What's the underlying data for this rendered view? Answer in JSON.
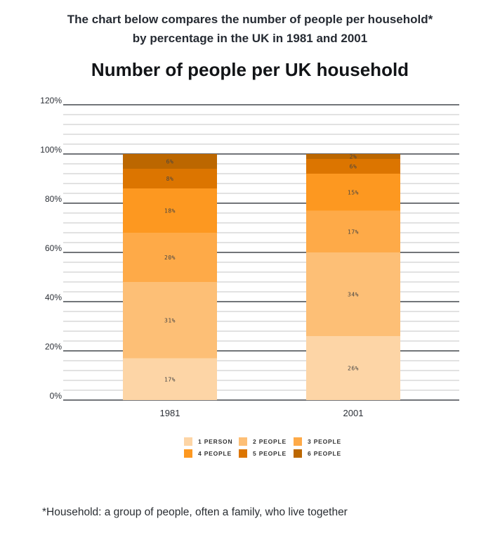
{
  "intro": {
    "line1": "The chart below compares the number of people per household*",
    "line2": "by percentage in the UK in 1981 and 2001"
  },
  "footnote": "*Household: a group of people, often a family, who live together",
  "chart_data": {
    "type": "bar",
    "stacked": true,
    "title": "Number of people per UK household",
    "xlabel": "",
    "ylabel": "",
    "categories": [
      "1981",
      "2001"
    ],
    "ylim": [
      0,
      120
    ],
    "yticks": [
      0,
      20,
      40,
      60,
      80,
      100,
      120
    ],
    "ytick_labels": [
      "0%",
      "20%",
      "40%",
      "60%",
      "80%",
      "100%",
      "120%"
    ],
    "minor_grid_step": 4,
    "grid": true,
    "legend_position": "bottom",
    "series": [
      {
        "name": "1 PERSON",
        "color": "#FDD5A6",
        "values": [
          17,
          26
        ],
        "labels": [
          "17%",
          "26%"
        ]
      },
      {
        "name": "2 PEOPLE",
        "color": "#FDBF76",
        "values": [
          31,
          34
        ],
        "labels": [
          "31%",
          "34%"
        ]
      },
      {
        "name": "3 PEOPLE",
        "color": "#FEAA48",
        "values": [
          20,
          17
        ],
        "labels": [
          "20%",
          "17%"
        ]
      },
      {
        "name": "4 PEOPLE",
        "color": "#FD9820",
        "values": [
          18,
          15
        ],
        "labels": [
          "18%",
          "15%"
        ]
      },
      {
        "name": "5 PEOPLE",
        "color": "#DC7500",
        "values": [
          8,
          6
        ],
        "labels": [
          "8%",
          "6%"
        ]
      },
      {
        "name": "6 PEOPLE",
        "color": "#BC6700",
        "values": [
          6,
          2
        ],
        "labels": [
          "6%",
          "2%"
        ]
      }
    ]
  }
}
